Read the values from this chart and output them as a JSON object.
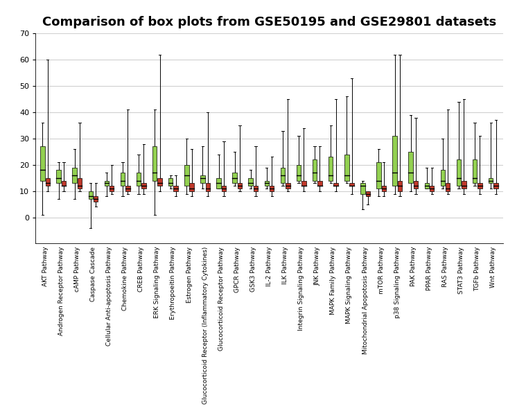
{
  "title": "Comparison of box plots from GSE50195 and GSE29801 datasets",
  "categories": [
    "AKT Pathway",
    "Androgen Receptor Pathway",
    "cAMP Pathway",
    "Caspase Cascade",
    "Cellular Anti-apoptosis Pathway",
    "Chemokine Pathway",
    "CREB Pathway",
    "ERK Signaling Pathway",
    "Erythropoeitin Pathway",
    "Estrogen Pathway",
    "Glucocorticoid Receptor (Inflammatory Cytokines)",
    "Glucocorticoid Receptor Pathway",
    "GPCR Pathway",
    "GSK3 Pathway",
    "IL-2 Pathway",
    "ILK Pathway",
    "Integrin Signaling Pathway",
    "JNK Pathway",
    "MAPK Family Pathway",
    "MAPK Signaling Pathway",
    "Mitochondrial Apopotosis Pathway",
    "mTOR Pathway",
    "p38 Signaling Pathway",
    "PAK Pathway",
    "PPAR Pathway",
    "RAS Pathway",
    "STAT3 Pathway",
    "TGFb Pathway",
    "Wnt Pathway"
  ],
  "green_boxes": {
    "whisker_low": [
      1,
      7,
      7,
      -4,
      8,
      8,
      9,
      1,
      11,
      9,
      11,
      11,
      12,
      11,
      11,
      12,
      13,
      13,
      13,
      13,
      3,
      8,
      9,
      10,
      11,
      11,
      11,
      12,
      11
    ],
    "q1": [
      14,
      13,
      13,
      7,
      12,
      12,
      12,
      14,
      12,
      12,
      13,
      11,
      13,
      12,
      12,
      13,
      14,
      14,
      14,
      14,
      9,
      11,
      12,
      13,
      11,
      12,
      12,
      13,
      13
    ],
    "median": [
      18,
      15,
      16,
      8,
      13,
      14,
      14,
      17,
      13,
      16,
      15,
      13,
      15,
      13,
      13,
      16,
      16,
      17,
      16,
      16,
      12,
      14,
      17,
      17,
      12,
      14,
      15,
      15,
      14
    ],
    "q3": [
      27,
      18,
      19,
      10,
      14,
      17,
      17,
      27,
      15,
      20,
      16,
      15,
      17,
      15,
      14,
      19,
      20,
      22,
      23,
      24,
      13,
      21,
      31,
      25,
      13,
      18,
      22,
      22,
      15
    ],
    "whisker_high": [
      36,
      21,
      26,
      13,
      17,
      21,
      24,
      41,
      16,
      30,
      27,
      24,
      25,
      18,
      19,
      33,
      31,
      27,
      35,
      46,
      14,
      26,
      62,
      39,
      19,
      30,
      44,
      36,
      36
    ]
  },
  "red_boxes": {
    "whisker_low": [
      10,
      10,
      10,
      4,
      9,
      9,
      9,
      10,
      8,
      8,
      8,
      8,
      10,
      8,
      8,
      10,
      10,
      10,
      10,
      9,
      5,
      8,
      8,
      9,
      9,
      9,
      9,
      9,
      9
    ],
    "q1": [
      12,
      12,
      11,
      6,
      10,
      10,
      11,
      12,
      10,
      10,
      10,
      10,
      11,
      10,
      10,
      11,
      12,
      12,
      12,
      12,
      8,
      10,
      10,
      11,
      10,
      10,
      11,
      11,
      11
    ],
    "median": [
      13,
      12,
      12,
      7,
      11,
      11,
      12,
      13,
      11,
      11,
      11,
      11,
      12,
      11,
      11,
      12,
      12,
      12,
      12,
      12,
      9,
      11,
      12,
      12,
      11,
      11,
      12,
      12,
      12
    ],
    "q3": [
      15,
      14,
      15,
      8,
      12,
      12,
      13,
      15,
      12,
      13,
      13,
      12,
      13,
      12,
      12,
      13,
      14,
      14,
      13,
      13,
      10,
      12,
      14,
      14,
      12,
      13,
      14,
      13,
      13
    ],
    "whisker_high": [
      60,
      21,
      36,
      13,
      20,
      41,
      28,
      62,
      16,
      26,
      40,
      29,
      35,
      27,
      23,
      45,
      34,
      27,
      45,
      53,
      8,
      21,
      62,
      38,
      19,
      41,
      45,
      31,
      37
    ]
  },
  "green_color": "#92d050",
  "red_color": "#c0392b",
  "box_width": 0.28,
  "ylim": [
    -10,
    70
  ],
  "yticks": [
    0,
    10,
    20,
    30,
    40,
    50,
    60,
    70
  ],
  "background_color": "#ffffff",
  "grid_color": "#d0d0d0",
  "title_fontsize": 13,
  "xlabel_fontsize": 6.5,
  "ylabel_fontsize": 8
}
